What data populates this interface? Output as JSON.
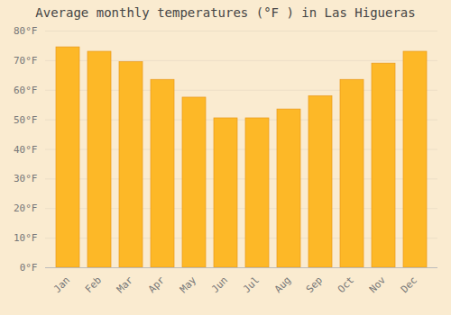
{
  "chart_data": {
    "type": "bar",
    "title": "Average monthly temperatures (°F ) in Las Higueras",
    "categories": [
      "Jan",
      "Feb",
      "Mar",
      "Apr",
      "May",
      "Jun",
      "Jul",
      "Aug",
      "Sep",
      "Oct",
      "Nov",
      "Dec"
    ],
    "values": [
      74.5,
      73.0,
      69.5,
      63.5,
      57.5,
      50.5,
      50.5,
      53.5,
      58.0,
      63.5,
      69.0,
      73.0
    ],
    "color": "#FDB827",
    "ylim": [
      0,
      80
    ],
    "yticks": [
      {
        "value": 0,
        "label": "0°F"
      },
      {
        "value": 10,
        "label": "10°F"
      },
      {
        "value": 20,
        "label": "20°F"
      },
      {
        "value": 30,
        "label": "30°F"
      },
      {
        "value": 40,
        "label": "40°F"
      },
      {
        "value": 50,
        "label": "50°F"
      },
      {
        "value": 60,
        "label": "60°F"
      },
      {
        "value": 70,
        "label": "70°F"
      },
      {
        "value": 80,
        "label": "80°F"
      }
    ],
    "grid": true
  }
}
